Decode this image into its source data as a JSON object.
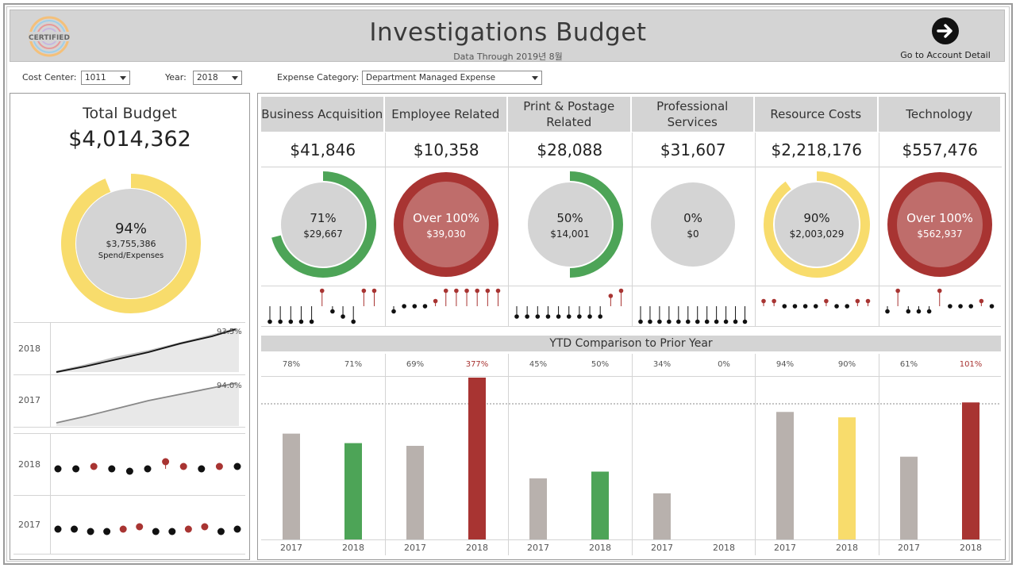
{
  "header": {
    "title": "Investigations Budget",
    "subtitle": "Data Through 2019년 8월",
    "logo_text": "CERTIFIED",
    "goto_label": "Go to Account Detail"
  },
  "filters": [
    {
      "label": "Cost Center:",
      "value": "1011"
    },
    {
      "label": "Year:",
      "value": "2018"
    },
    {
      "label": "Expense Category:",
      "value": "Department Managed Expense"
    }
  ],
  "total": {
    "label": "Total Budget",
    "value": "$4,014,362",
    "pct_text": "94%",
    "pct": 0.94,
    "spend": "$3,755,386",
    "caption": "Spend/Expenses",
    "color": "#f8dc6c"
  },
  "trend": {
    "years": [
      "2018",
      "2017"
    ],
    "end_labels": [
      "93.5%",
      "94.0%"
    ]
  },
  "left_dots": {
    "years": [
      "2018",
      "2017"
    ],
    "rows": [
      [
        {
          "v": 0,
          "r": false
        },
        {
          "v": 0,
          "r": false
        },
        {
          "v": 1,
          "r": true
        },
        {
          "v": 0,
          "r": false
        },
        {
          "v": -1,
          "r": false
        },
        {
          "v": 0,
          "r": false
        },
        {
          "v": 3,
          "r": true
        },
        {
          "v": 1,
          "r": true
        },
        {
          "v": 0,
          "r": false
        },
        {
          "v": 1,
          "r": true
        },
        {
          "v": 1,
          "r": false
        }
      ],
      [
        {
          "v": 0,
          "r": false
        },
        {
          "v": 0,
          "r": false
        },
        {
          "v": -1,
          "r": false
        },
        {
          "v": -1,
          "r": false
        },
        {
          "v": 0,
          "r": true
        },
        {
          "v": 1,
          "r": true
        },
        {
          "v": -1,
          "r": false
        },
        {
          "v": -1,
          "r": false
        },
        {
          "v": 0,
          "r": true
        },
        {
          "v": 1,
          "r": true
        },
        {
          "v": -1,
          "r": false
        },
        {
          "v": 0,
          "r": false
        }
      ]
    ]
  },
  "colors": {
    "green": "#4da457",
    "red": "#a83432",
    "yellow": "#f8dc6c",
    "gray": "#b8b1ad",
    "donut_bg": "#d4d4d4"
  },
  "categories": [
    {
      "name": "Business Acquisition",
      "budget": "$41,846",
      "pct_text": "71%",
      "pct": 0.71,
      "spent": "$29,667",
      "status": "green",
      "lollipops": [
        -3,
        -3,
        -3,
        -3,
        -3,
        3,
        -1,
        -2,
        -3,
        3,
        3
      ],
      "ytd": {
        "prior_label": "78%",
        "current_label": "71%",
        "prior": 78,
        "current": 71,
        "current_color": "green"
      }
    },
    {
      "name": "Employee Related",
      "budget": "$10,358",
      "pct_text": "Over 100%",
      "pct": 1.0,
      "spent": "$39,030",
      "status": "red",
      "lollipops": [
        -1,
        0,
        0,
        0,
        1,
        3,
        3,
        3,
        3,
        3,
        3
      ],
      "ytd": {
        "prior_label": "69%",
        "current_label": "377%",
        "prior": 69,
        "current": 377,
        "current_color": "red"
      }
    },
    {
      "name": "Print & Postage Related",
      "budget": "$28,088",
      "pct_text": "50%",
      "pct": 0.5,
      "spent": "$14,001",
      "status": "green",
      "lollipops": [
        -2,
        -2,
        -2,
        -2,
        -2,
        -2,
        -2,
        -2,
        -2,
        2,
        3
      ],
      "ytd": {
        "prior_label": "45%",
        "current_label": "50%",
        "prior": 45,
        "current": 50,
        "current_color": "green"
      }
    },
    {
      "name": "Professional Services",
      "budget": "$31,607",
      "pct_text": "0%",
      "pct": 0,
      "spent": "$0",
      "status": "gray",
      "lollipops": [
        -3,
        -3,
        -3,
        -3,
        -3,
        -3,
        -3,
        -3,
        -3,
        -3,
        -3,
        -3
      ],
      "ytd": {
        "prior_label": "34%",
        "current_label": "0%",
        "prior": 34,
        "current": 0,
        "current_color": "gray"
      }
    },
    {
      "name": "Resource Costs",
      "budget": "$2,218,176",
      "pct_text": "90%",
      "pct": 0.9,
      "spent": "$2,003,029",
      "status": "yellow",
      "lollipops": [
        1,
        1,
        0,
        0,
        0,
        0,
        1,
        0,
        0,
        1,
        1
      ],
      "ytd": {
        "prior_label": "94%",
        "current_label": "90%",
        "prior": 94,
        "current": 90,
        "current_color": "yellow"
      }
    },
    {
      "name": "Technology",
      "budget": "$557,476",
      "pct_text": "Over 100%",
      "pct": 1.0,
      "spent": "$562,937",
      "status": "red",
      "lollipops": [
        -1,
        3,
        -1,
        -1,
        -1,
        3,
        0,
        0,
        0,
        1,
        0
      ],
      "ytd": {
        "prior_label": "61%",
        "current_label": "101%",
        "prior": 61,
        "current": 101,
        "current_color": "red"
      }
    }
  ],
  "ytd_title": "YTD Comparison to Prior Year",
  "ytd_years": [
    "2017",
    "2018"
  ]
}
